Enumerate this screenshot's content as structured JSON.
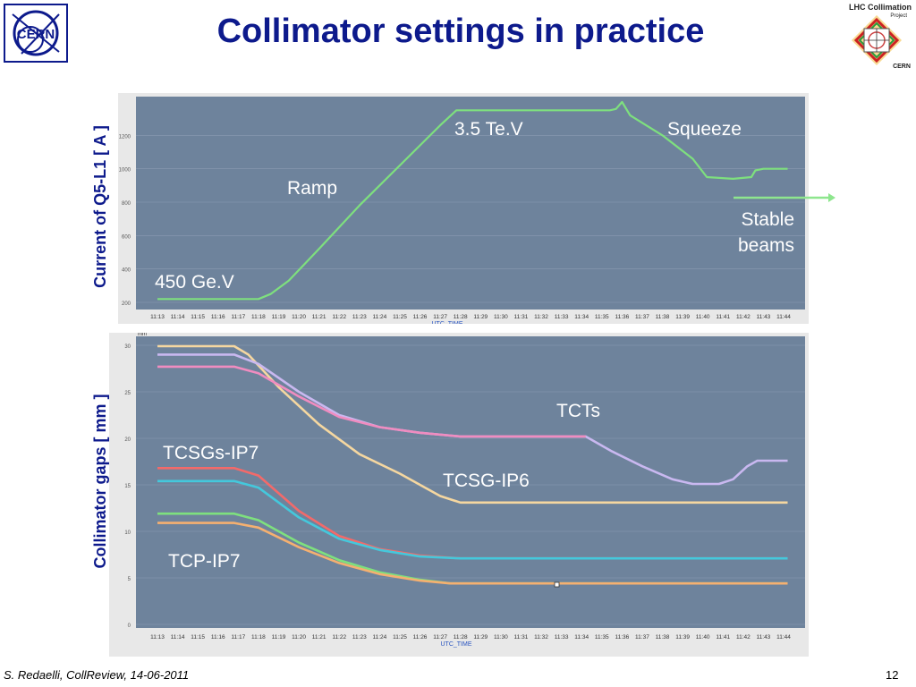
{
  "slide": {
    "title": "Collimator settings in practice",
    "footer_left": "S. Redaelli, CollReview, 14-06-2011",
    "page_number": "12",
    "logo_left": "CERN",
    "logo_right_line1": "LHC Collimation",
    "logo_right_line2": "Project",
    "logo_right_line3": "CERN"
  },
  "colors": {
    "plot_bg": "#6e839c",
    "panel_bg": "#e8e8e8",
    "title_color": "#0d1a8c",
    "current_line": "#7ee07e",
    "tcsg_ip6": "#f5d7a0",
    "tct_upper": "#c9b8f0",
    "tct_lower": "#f08cc0",
    "tcsg_ip7_red": "#f26a6a",
    "tcsg_ip7_cyan": "#44c8dc",
    "tcp_green": "#7ee07e",
    "tcp_orange": "#f5b070"
  },
  "chart_data": [
    {
      "type": "line",
      "ylabel": "Current of Q5-L1 [ A ]",
      "xlabel": "UTC_TIME",
      "x_ticks": [
        "11:13",
        "11:14",
        "11:15",
        "11:16",
        "11:17",
        "11:18",
        "11:19",
        "11:20",
        "11:21",
        "11:22",
        "11:23",
        "11:24",
        "11:25",
        "11:26",
        "11:27",
        "11:28",
        "11:29",
        "11:30",
        "11:31",
        "11:32",
        "11:33",
        "11:34",
        "11:35",
        "11:36",
        "11:37",
        "11:38",
        "11:39",
        "11:40",
        "11:41",
        "11:42",
        "11:43",
        "11:44"
      ],
      "y_ticks": [
        "200",
        "400",
        "600",
        "800",
        "1000",
        "1200"
      ],
      "ylim": [
        200,
        1400
      ],
      "annotations": {
        "a450": "450 Ge.V",
        "ramp": "Ramp",
        "flat": "3.5 Te.V",
        "squeeze": "Squeeze",
        "stable1": "Stable",
        "stable2": "beams"
      },
      "series": [
        {
          "points": [
            [
              0,
              220
            ],
            [
              5,
              220
            ],
            [
              5.6,
              250
            ],
            [
              6.5,
              330
            ],
            [
              8,
              520
            ],
            [
              10,
              780
            ],
            [
              12,
              1020
            ],
            [
              14,
              1260
            ],
            [
              14.8,
              1350
            ],
            [
              22.4,
              1350
            ],
            [
              22.7,
              1358
            ],
            [
              23.0,
              1400
            ],
            [
              23.4,
              1320
            ],
            [
              25,
              1200
            ],
            [
              26.5,
              1060
            ],
            [
              27.2,
              950
            ],
            [
              28.5,
              940
            ],
            [
              29.4,
              950
            ],
            [
              29.6,
              990
            ],
            [
              30,
              1000
            ],
            [
              31.2,
              1000
            ]
          ]
        }
      ]
    },
    {
      "type": "line",
      "ylabel": "Collimator gaps [ mm ]",
      "xlabel": "UTC_TIME",
      "unit_label": "mm",
      "x_ticks": [
        "11:13",
        "11:14",
        "11:15",
        "11:16",
        "11:17",
        "11:18",
        "11:19",
        "11:20",
        "11:21",
        "11:22",
        "11:23",
        "11:24",
        "11:25",
        "11:26",
        "11:27",
        "11:28",
        "11:29",
        "11:30",
        "11:31",
        "11:32",
        "11:33",
        "11:34",
        "11:35",
        "11:36",
        "11:37",
        "11:38",
        "11:39",
        "11:40",
        "11:41",
        "11:42",
        "11:43",
        "11:44"
      ],
      "y_ticks": [
        "0",
        "5",
        "10",
        "15",
        "20",
        "25",
        "30"
      ],
      "ylim": [
        0,
        30
      ],
      "annotations": {
        "tcts": "TCTs",
        "tcsgs_ip7": "TCSGs-IP7",
        "tcsg_ip6": "TCSG-IP6",
        "tcp_ip7": "TCP-IP7"
      },
      "series": [
        {
          "points": [
            [
              0,
              29.9
            ],
            [
              3.8,
              29.9
            ],
            [
              4.5,
              29
            ],
            [
              6,
              25.5
            ],
            [
              8,
              21.5
            ],
            [
              10,
              18.3
            ],
            [
              12,
              16.2
            ],
            [
              14,
              13.8
            ],
            [
              15,
              13.1
            ],
            [
              31.2,
              13.1
            ]
          ]
        },
        {
          "points": [
            [
              0,
              29
            ],
            [
              3.8,
              29
            ],
            [
              5,
              28
            ],
            [
              7,
              25
            ],
            [
              9,
              22.5
            ],
            [
              11,
              21.2
            ],
            [
              13,
              20.6
            ],
            [
              15,
              20.2
            ],
            [
              21.2,
              20.2
            ],
            [
              22.5,
              18.6
            ],
            [
              24,
              17
            ],
            [
              25.5,
              15.6
            ],
            [
              26.5,
              15.1
            ],
            [
              27.8,
              15.1
            ],
            [
              28.5,
              15.6
            ],
            [
              29.2,
              17
            ],
            [
              29.7,
              17.6
            ],
            [
              31.2,
              17.6
            ]
          ]
        },
        {
          "points": [
            [
              0,
              27.7
            ],
            [
              3.8,
              27.7
            ],
            [
              5,
              27
            ],
            [
              7,
              24.5
            ],
            [
              9,
              22.3
            ],
            [
              11,
              21.2
            ],
            [
              13,
              20.6
            ],
            [
              15,
              20.2
            ],
            [
              21.2,
              20.2
            ]
          ]
        },
        {
          "points": [
            [
              0,
              16.8
            ],
            [
              3.8,
              16.8
            ],
            [
              5,
              16
            ],
            [
              7,
              12.2
            ],
            [
              9,
              9.5
            ],
            [
              11,
              8.1
            ],
            [
              13,
              7.4
            ],
            [
              15,
              7.1
            ],
            [
              31.2,
              7.1
            ]
          ]
        },
        {
          "points": [
            [
              0,
              15.4
            ],
            [
              3.8,
              15.4
            ],
            [
              5,
              14.7
            ],
            [
              7,
              11.5
            ],
            [
              9,
              9.2
            ],
            [
              11,
              8
            ],
            [
              13,
              7.3
            ],
            [
              15,
              7.1
            ],
            [
              31.2,
              7.1
            ]
          ]
        },
        {
          "points": [
            [
              0,
              11.9
            ],
            [
              3.8,
              11.9
            ],
            [
              5,
              11.2
            ],
            [
              7,
              8.8
            ],
            [
              9,
              6.9
            ],
            [
              11,
              5.6
            ],
            [
              13,
              4.8
            ],
            [
              14.5,
              4.4
            ],
            [
              31.2,
              4.4
            ]
          ]
        },
        {
          "points": [
            [
              0,
              10.9
            ],
            [
              3.8,
              10.9
            ],
            [
              5,
              10.4
            ],
            [
              7,
              8.3
            ],
            [
              9,
              6.6
            ],
            [
              11,
              5.4
            ],
            [
              13,
              4.7
            ],
            [
              14.5,
              4.4
            ],
            [
              31.2,
              4.4
            ]
          ]
        }
      ]
    }
  ]
}
